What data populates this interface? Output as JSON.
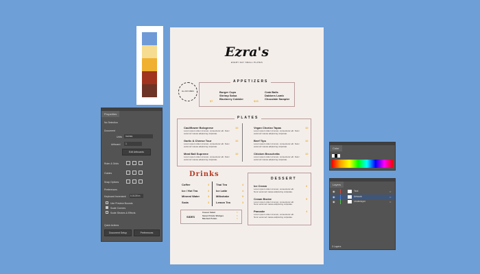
{
  "palette": {
    "colors": [
      "#6f9ad8",
      "#f5dc90",
      "#f0b030",
      "#a0341e",
      "#6e3426"
    ]
  },
  "menu": {
    "logo": "Ezra's",
    "tagline": "EVERY DAY SMALL PLATES",
    "badge_text": "ALL DAY MENU",
    "appetizers": {
      "title": "APPETIZERS",
      "groups": [
        {
          "price": "$7",
          "items": [
            "Burger Cups",
            "Shrimp Salsa",
            "Blueberry Cobbler"
          ]
        },
        {
          "price": "$15",
          "items": [
            "Crab Balls",
            "Dabbers Lamb",
            "Chocolate Sampler"
          ]
        }
      ]
    },
    "plates": {
      "title": "PLATES",
      "desc": "Lorem ipsum dolor sit amet, consectetur elit. Nunc euismod massa adipiscing vulputate.",
      "items": [
        {
          "name": "Cauliflower Bolognese",
          "price": "10"
        },
        {
          "name": "Garlic & Cheese Tour",
          "price": "10"
        },
        {
          "name": "Meat Ball Supreme",
          "price": "10"
        },
        {
          "name": "Vegan Chorizo Tapas",
          "price": "10"
        },
        {
          "name": "Beef Tips",
          "price": "10"
        },
        {
          "name": "Chicken Bruschetta",
          "price": "10"
        }
      ]
    },
    "drinks": {
      "title": "Drinks",
      "left": [
        {
          "name": "Coffee",
          "price": "3"
        },
        {
          "name": "Ice / Hot Tea",
          "price": "3"
        },
        {
          "name": "Mineral Water",
          "price": "3"
        },
        {
          "name": "Soda",
          "price": "3"
        }
      ],
      "right": [
        {
          "name": "Thai Tea",
          "price": "4"
        },
        {
          "name": "Ice Latte",
          "price": "4"
        },
        {
          "name": "Milkshake",
          "price": "5"
        },
        {
          "name": "Lemon Tea",
          "price": "3"
        }
      ]
    },
    "sides": {
      "title": "SIDES",
      "items": [
        {
          "name": "Caesar Salad",
          "price": "5"
        },
        {
          "name": "Sweet Potato Wedges",
          "price": "5"
        },
        {
          "name": "Mashed Potato",
          "price": "5"
        }
      ]
    },
    "dessert": {
      "title": "DESSERT",
      "desc": "Lorem ipsum dolor sit amet, consectetur elit. Nunc euismod massa adipiscing vulputate.",
      "items": [
        {
          "name": "Ice Cream",
          "price": "6"
        },
        {
          "name": "Cream Brulee",
          "price": "5"
        },
        {
          "name": "Pancake",
          "price": "4"
        }
      ]
    }
  },
  "properties": {
    "tab": "Properties",
    "no_selection": "No Selection",
    "document": "Document",
    "units_label": "Units",
    "units_value": "Inches",
    "artboard_label": "Artboard",
    "artboard_value": "1",
    "edit_artboards": "Edit Artboards",
    "rulers_grids": "Ruler & Grids",
    "guides": "Guides",
    "snap_options": "Snap Options",
    "preferences": "Preferences",
    "keyboard_increment_label": "Keyboard Increment",
    "keyboard_increment_value": "0.0139 in",
    "use_preview_bounds": "Use Preview Bounds",
    "scale_corners": "Scale Corners",
    "scale_strokes": "Scale Strokes & Effects",
    "scale_corners_checked": true,
    "quick_actions": "Quick Actions",
    "document_setup": "Document Setup",
    "preferences_btn": "Preferences"
  },
  "color_panel": {
    "tab": "Color"
  },
  "layers_panel": {
    "tab": "Layers",
    "layers": [
      {
        "name": "Text",
        "color": "#e0443c"
      },
      {
        "name": "Artwork",
        "color": "#4a7fe0",
        "selected": true
      },
      {
        "name": "Underlayer",
        "color": "#4ccc4c"
      }
    ],
    "footer": "3 Layers"
  }
}
